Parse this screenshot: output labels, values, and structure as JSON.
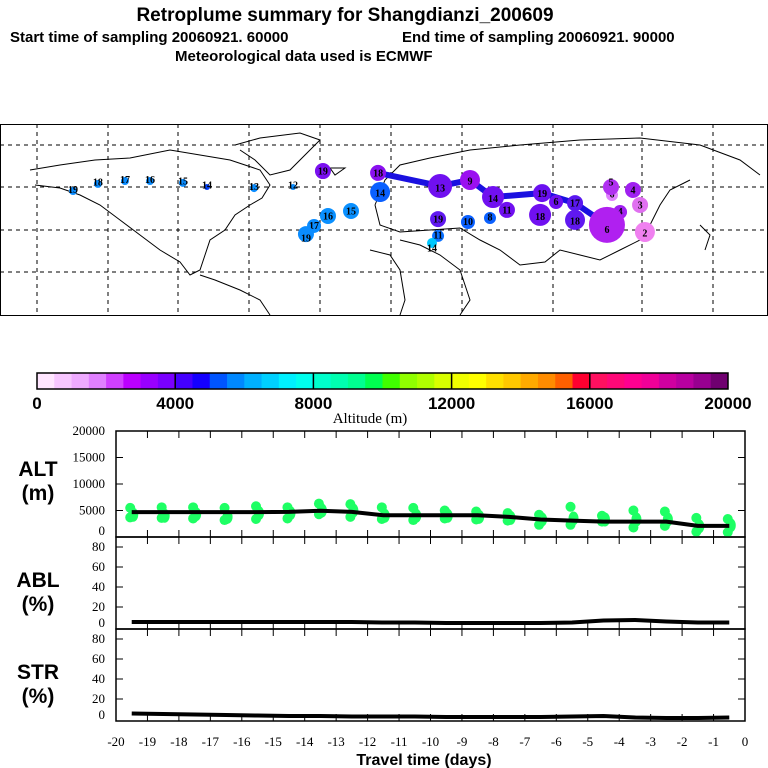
{
  "header": {
    "title": "Retroplume summary for Shangdianzi_200609",
    "start_label": "Start time of sampling 20060921. 60000",
    "end_label": "End time of sampling 20060921. 90000",
    "met_label": "Meteorological data used is ECMWF"
  },
  "chart_data": [
    {
      "type": "scatter",
      "name": "map",
      "title": "Retroplume positions (labelled by days before release)",
      "markers": [
        {
          "lon": -147.3,
          "lat": 54.9,
          "label": "19",
          "size": 4,
          "color": "#0a8cff"
        },
        {
          "lon": -135,
          "lat": 58.3,
          "label": "18",
          "size": 4,
          "color": "#0a8cff"
        },
        {
          "lon": -121.6,
          "lat": 59.7,
          "label": "17",
          "size": 4,
          "color": "#0a8cff"
        },
        {
          "lon": -109.2,
          "lat": 59.7,
          "label": "16",
          "size": 4,
          "color": "#0a8cff"
        },
        {
          "lon": -92.9,
          "lat": 58.8,
          "label": "15",
          "size": 4,
          "color": "#0a8cff"
        },
        {
          "lon": -81,
          "lat": 56.8,
          "label": "14",
          "size": 3,
          "color": "#0040ff"
        },
        {
          "lon": -57.7,
          "lat": 56.3,
          "label": "13",
          "size": 4,
          "color": "#0a8cff"
        },
        {
          "lon": -38.4,
          "lat": 56.8,
          "label": "12",
          "size": 3,
          "color": "#0a8cff"
        },
        {
          "lon": -23.6,
          "lat": 64.5,
          "label": "19",
          "size": 8,
          "color": "#7a10f0"
        },
        {
          "lon": 3.7,
          "lat": 63.6,
          "label": "18",
          "size": 8,
          "color": "#8a10f0"
        },
        {
          "lon": 4.7,
          "lat": 54.4,
          "label": "14",
          "size": 10,
          "color": "#0a60ff"
        },
        {
          "lon": -9.7,
          "lat": 45.3,
          "label": "15",
          "size": 8,
          "color": "#0a90ff"
        },
        {
          "lon": -21.1,
          "lat": 42.9,
          "label": "16",
          "size": 8,
          "color": "#0a90ff"
        },
        {
          "lon": -28,
          "lat": 38.1,
          "label": "17",
          "size": 7,
          "color": "#0a8cff"
        },
        {
          "lon": -32,
          "lat": 34.2,
          "label": "19",
          "size": 8,
          "color": "#0a8cff"
        },
        {
          "lon": 34.4,
          "lat": 57.3,
          "label": "13",
          "size": 12,
          "color": "#7010f0"
        },
        {
          "lon": 49.2,
          "lat": 60.2,
          "label": "9",
          "size": 10,
          "color": "#9b10f0"
        },
        {
          "lon": 33.4,
          "lat": 41.4,
          "label": "19",
          "size": 8,
          "color": "#6018f0"
        },
        {
          "lon": 48.2,
          "lat": 40,
          "label": "10",
          "size": 7,
          "color": "#0a60ff"
        },
        {
          "lon": 59.1,
          "lat": 41.9,
          "label": "8",
          "size": 6,
          "color": "#0a60ff"
        },
        {
          "lon": 33.4,
          "lat": 33.3,
          "label": "11",
          "size": 6,
          "color": "#0a70ff"
        },
        {
          "lon": 30.4,
          "lat": 29.9,
          "label": "14",
          "size": 5,
          "color": "#00c8ff"
        },
        {
          "lon": 60.6,
          "lat": 52,
          "label": "14",
          "size": 11,
          "color": "#7010f0"
        },
        {
          "lon": 67.5,
          "lat": 45.8,
          "label": "11",
          "size": 8,
          "color": "#7010f0"
        },
        {
          "lon": 84.9,
          "lat": 53.9,
          "label": "19",
          "size": 9,
          "color": "#6a10f0"
        },
        {
          "lon": 83.9,
          "lat": 43.4,
          "label": "18",
          "size": 11,
          "color": "#7010f0"
        },
        {
          "lon": 91.8,
          "lat": 49.6,
          "label": "6",
          "size": 7,
          "color": "#7010f0"
        },
        {
          "lon": 101.2,
          "lat": 49.1,
          "label": "17",
          "size": 8,
          "color": "#5a18f0"
        },
        {
          "lon": 101.2,
          "lat": 41,
          "label": "18",
          "size": 10,
          "color": "#6018f0"
        },
        {
          "lon": 119.5,
          "lat": 53,
          "label": "6",
          "size": 6,
          "color": "#e080ff"
        },
        {
          "lon": 119,
          "lat": 56.8,
          "label": "5",
          "size": 8,
          "color": "#b030f0"
        },
        {
          "lon": 129.9,
          "lat": 55.4,
          "label": "4",
          "size": 8,
          "color": "#a020f0"
        },
        {
          "lon": 133.4,
          "lat": 48.2,
          "label": "3",
          "size": 8,
          "color": "#e070f0"
        },
        {
          "lon": 123.5,
          "lat": 44.8,
          "label": "4",
          "size": 7,
          "color": "#a020f0"
        },
        {
          "lon": 117,
          "lat": 38.6,
          "label": "6",
          "size": 18,
          "color": "#b020f0"
        },
        {
          "lon": 135.8,
          "lat": 35.2,
          "label": "2",
          "size": 10,
          "color": "#f080f0"
        }
      ],
      "trajectory": [
        [
          3.7,
          63.6
        ],
        [
          34.4,
          57.3
        ],
        [
          49.2,
          60.2
        ],
        [
          60.6,
          52
        ],
        [
          84.9,
          53.9
        ],
        [
          101.2,
          49.1
        ],
        [
          117,
          38.6
        ]
      ]
    },
    {
      "type": "colorbar",
      "name": "altitude-colorbar",
      "xlabel": "Altitude (m)",
      "range": [
        0,
        20000
      ],
      "tick_labels": [
        "0",
        "4000",
        "8000",
        "12000",
        "16000",
        "20000"
      ],
      "colors": [
        "#ffe6ff",
        "#f7c6ff",
        "#eeaaff",
        "#e080ff",
        "#d040ff",
        "#bb00ff",
        "#9900ff",
        "#7a00ff",
        "#4400ff",
        "#1400ff",
        "#0055ff",
        "#0088ff",
        "#00b0ff",
        "#00d0ff",
        "#00f0ff",
        "#00ffee",
        "#00ffcc",
        "#00ffb0",
        "#00ff90",
        "#00ff50",
        "#40ff00",
        "#90ff00",
        "#b0ff00",
        "#d8ff00",
        "#f0ff00",
        "#ffff00",
        "#ffe000",
        "#ffc800",
        "#ffaa00",
        "#ff8c00",
        "#ff6000",
        "#ff0030",
        "#ff1060",
        "#ff0878",
        "#ff0090",
        "#f00098",
        "#d000a0",
        "#b800a0",
        "#980090",
        "#700070"
      ]
    },
    {
      "type": "line",
      "name": "alt",
      "ylabel": "ALT\n(m)",
      "ylabel_lines": [
        "ALT",
        "(m)"
      ],
      "ylim": [
        0,
        20000
      ],
      "yticks": [
        "0",
        "5000",
        "10000",
        "15000",
        "20000"
      ],
      "x": [
        -19.5,
        -18.5,
        -17.5,
        -16.5,
        -15.5,
        -14.5,
        -13.5,
        -12.5,
        -11.5,
        -10.5,
        -9.5,
        -8.5,
        -7.5,
        -6.5,
        -5.5,
        -4.5,
        -3.5,
        -2.5,
        -1.5,
        -0.5
      ],
      "values": [
        4700,
        4700,
        4700,
        4700,
        4700,
        4750,
        4950,
        4750,
        4100,
        4100,
        4100,
        4100,
        3800,
        3300,
        3100,
        2900,
        2900,
        2900,
        2100,
        2100
      ],
      "cluster_color": "#1eff64",
      "clusters": [
        [
          5500,
          4200,
          3700
        ],
        [
          5600,
          4000,
          3600
        ],
        [
          5600,
          4300,
          3500
        ],
        [
          5500,
          3800,
          3200
        ],
        [
          5800,
          4500,
          3400
        ],
        [
          5600,
          4500,
          3500
        ],
        [
          6300,
          5000,
          4300
        ],
        [
          6200,
          5000,
          3800
        ],
        [
          5600,
          4000,
          3400
        ],
        [
          5500,
          4000,
          3200
        ],
        [
          5000,
          4000,
          3500
        ],
        [
          4800,
          3800,
          3300
        ],
        [
          4500,
          3600,
          3100
        ],
        [
          4200,
          3300,
          2300
        ],
        [
          5700,
          3500,
          2300
        ],
        [
          4000,
          3300,
          2900
        ],
        [
          5000,
          3300,
          1800
        ],
        [
          4800,
          3300,
          2100
        ],
        [
          3600,
          2000,
          1000
        ],
        [
          3400,
          2200,
          900
        ]
      ]
    },
    {
      "type": "line",
      "name": "abl",
      "ylabel_lines": [
        "ABL",
        "(%)"
      ],
      "ylim": [
        0,
        90
      ],
      "yticks": [
        "0",
        "20",
        "40",
        "60",
        "80"
      ],
      "x": [
        -19.5,
        -18.5,
        -17.5,
        -16.5,
        -15.5,
        -14.5,
        -13.5,
        -12.5,
        -11.5,
        -10.5,
        -9.5,
        -8.5,
        -7.5,
        -6.5,
        -5.5,
        -4.5,
        -3.5,
        -2.5,
        -1.5,
        -0.5
      ],
      "values": [
        5,
        5,
        5,
        5,
        5,
        5,
        5,
        5,
        4.5,
        4.5,
        4,
        4,
        4,
        4,
        4.5,
        6.5,
        7,
        5.5,
        4.5,
        4.5
      ]
    },
    {
      "type": "line",
      "name": "str",
      "ylabel_lines": [
        "STR",
        "(%)"
      ],
      "ylim": [
        0,
        90
      ],
      "yticks": [
        "0",
        "20",
        "40",
        "60",
        "80"
      ],
      "x": [
        -19.5,
        -18.5,
        -17.5,
        -16.5,
        -15.5,
        -14.5,
        -13.5,
        -12.5,
        -11.5,
        -10.5,
        -9.5,
        -8.5,
        -7.5,
        -6.5,
        -5.5,
        -4.5,
        -3.5,
        -2.5,
        -1.5,
        -0.5
      ],
      "values": [
        5.5,
        5,
        4.5,
        4,
        3.5,
        3,
        3,
        2.5,
        2.5,
        2.5,
        2,
        2,
        2,
        2,
        2.5,
        3,
        1.5,
        1,
        1,
        1.5
      ]
    }
  ],
  "xaxis": {
    "xlabel": "Travel time (days)",
    "xlim": [
      -20,
      0
    ],
    "tick_labels": [
      "-20",
      "-19",
      "-18",
      "-17",
      "-16",
      "-15",
      "-14",
      "-13",
      "-12",
      "-11",
      "-10",
      "-9",
      "-8",
      "-7",
      "-6",
      "-5",
      "-4",
      "-3",
      "-2",
      "-1",
      "0"
    ]
  }
}
